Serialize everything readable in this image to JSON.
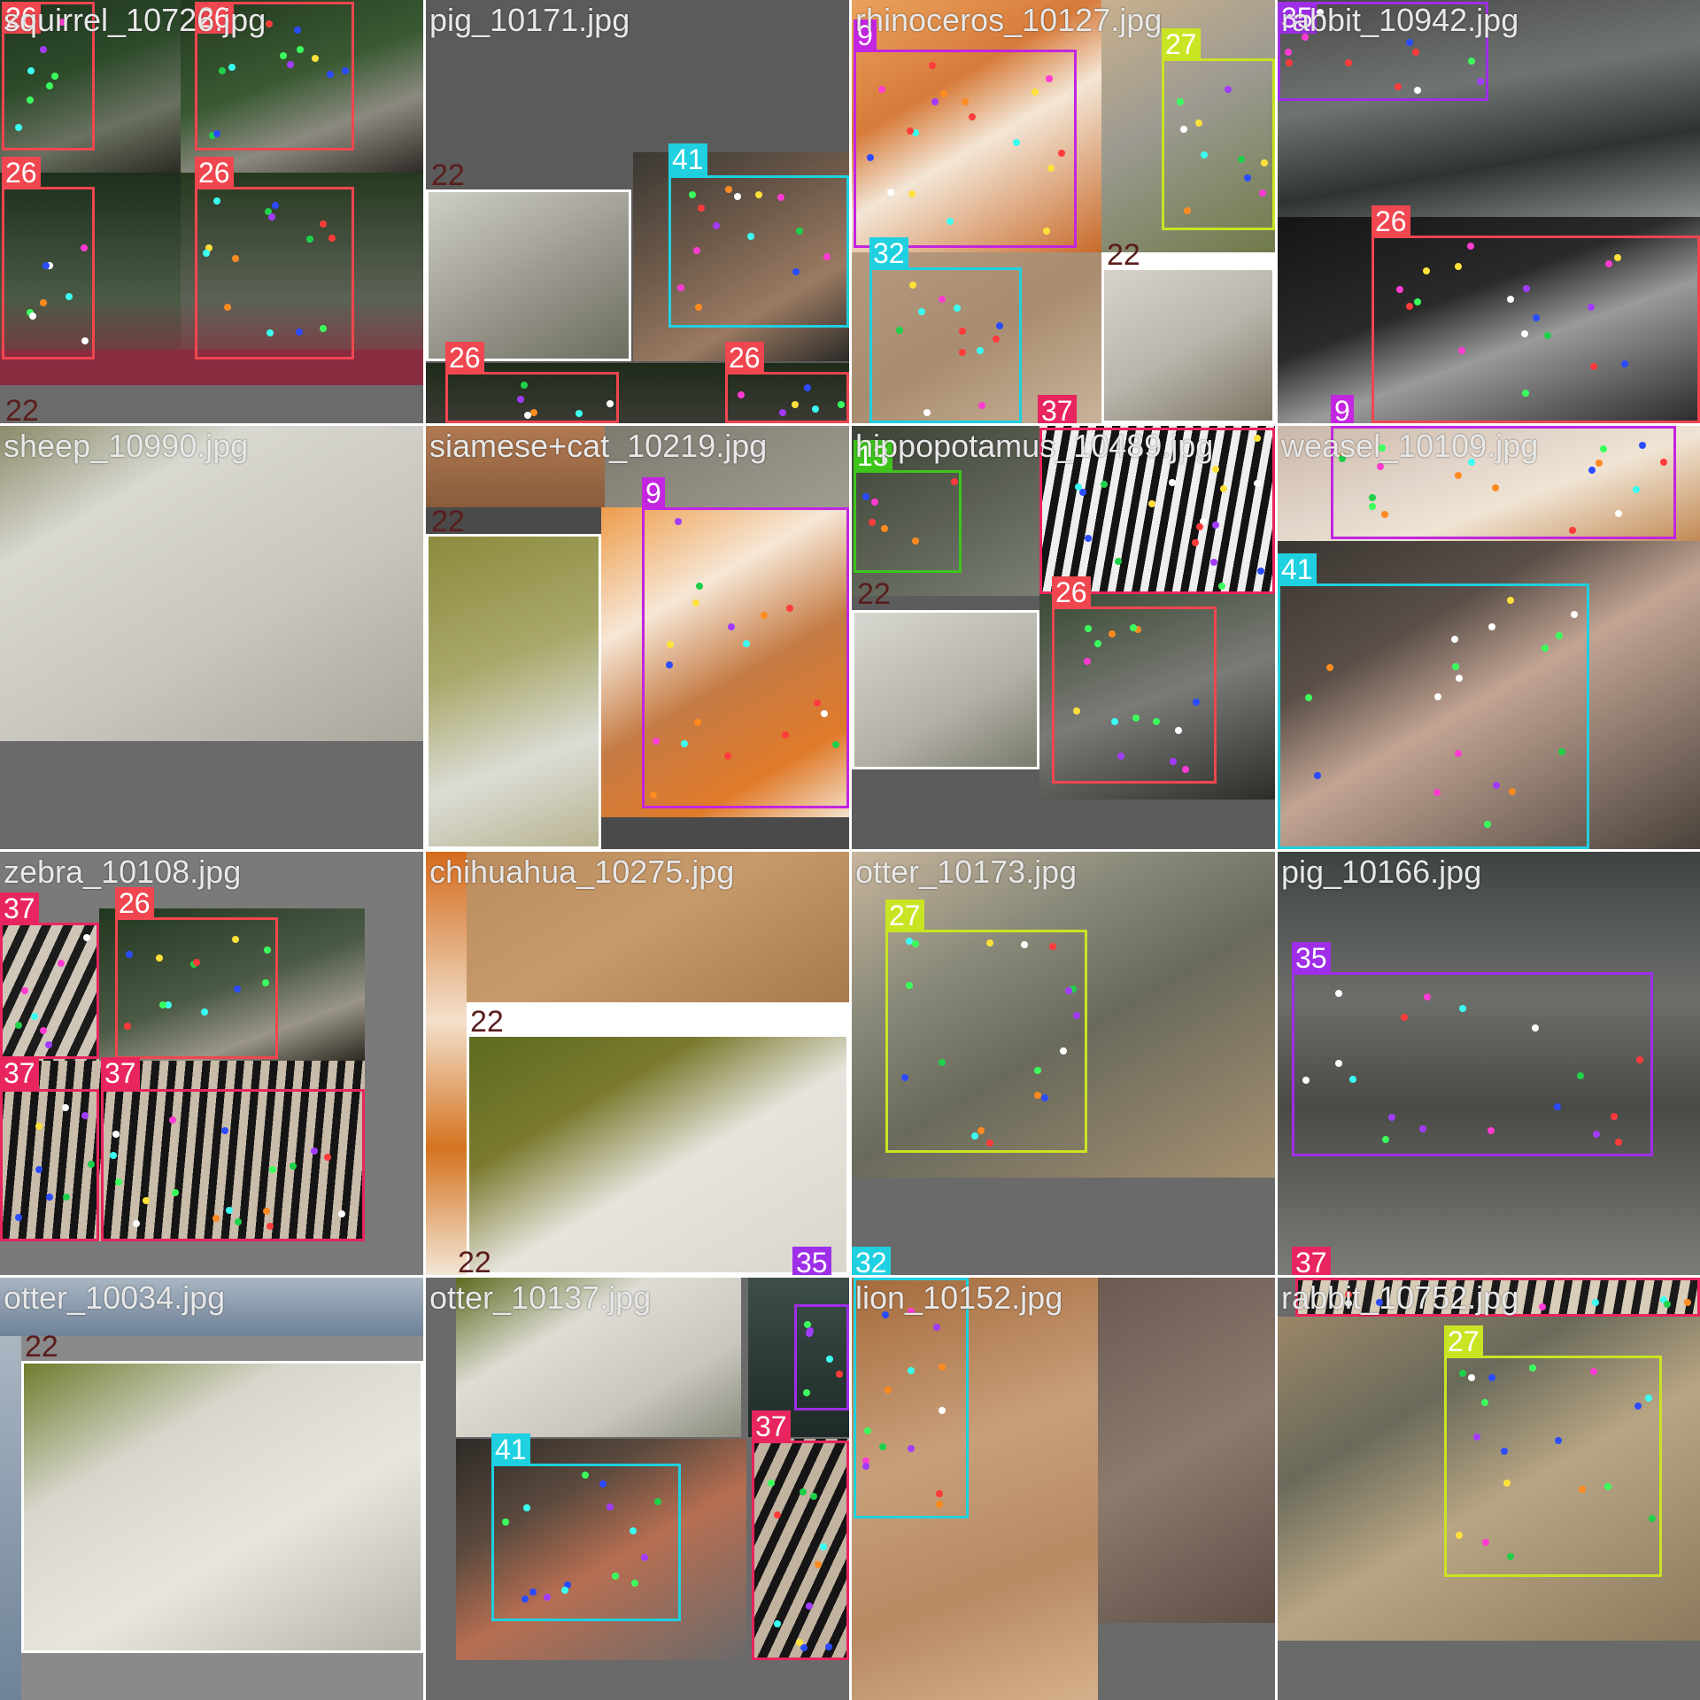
{
  "tiles": [
    {
      "id": "r0c0",
      "filename": "squirrel_10726.jpg",
      "subs": [
        {
          "bg": "linear-gradient(160deg,#1f3520 0%,#2d4a2a 40%,#6a7160 70%,#2a2a22 100%)"
        },
        {
          "bg": "linear-gradient(160deg,#23381f 0%,#3a5a33 45%,#8c8a80 70%,#2e2a26 100%)"
        },
        {
          "bg": "linear-gradient(180deg,#1c2f1c 0%,#4b5a45 60%,#8b2a3c 100%)"
        },
        {
          "bg": "linear-gradient(180deg,#26391f 0%,#5c6256 60%,#8e2b3e 100%)"
        },
        {
          "bg": "#8a2c40"
        }
      ],
      "labels": [
        {
          "text": "26",
          "color": "#f0464f"
        },
        {
          "text": "26",
          "color": "#f0464f"
        },
        {
          "text": "26",
          "color": "#f0464f"
        },
        {
          "text": "26",
          "color": "#f0464f"
        },
        {
          "text": "22",
          "color": "transparent"
        }
      ]
    },
    {
      "id": "r0c1",
      "filename": "pig_10171.jpg",
      "subs": [
        {
          "bg": "#5b5b5b"
        },
        {
          "bg": "linear-gradient(150deg,#cfcfc8 0%,#9e9c92 50%,#6b6b5e 100%)"
        },
        {
          "bg": "linear-gradient(150deg,#3a3833 0%,#6e5a4a 40%,#9a7a62 70%,#2b2a28 100%)"
        },
        {
          "bg": "linear-gradient(180deg,#1e2b1a 0%,#3b3b35 100%)"
        }
      ],
      "labels": [
        {
          "text": "22",
          "color": "transparent"
        },
        {
          "text": "41",
          "color": "#1fd0e0"
        },
        {
          "text": "26",
          "color": "#f0464f"
        },
        {
          "text": "26",
          "color": "#f0464f"
        }
      ]
    },
    {
      "id": "r0c2",
      "filename": "rhinoceros_10127.jpg",
      "subs": [
        {
          "bg": "linear-gradient(150deg,#e9a35c 0%,#d77b3a 35%,#f3e6d6 55%,#c86a2b 100%)"
        },
        {
          "bg": "linear-gradient(150deg,#c8b08e 0%,#9c9a90 45%,#6f7a4a 100%)"
        },
        {
          "bg": "linear-gradient(150deg,#b59a80 0%,#a88c70 50%,#c9b39a 100%)"
        },
        {
          "bg": "linear-gradient(150deg,#d7d4cc 0%,#b9b6ad 50%,#7b7260 100%)"
        }
      ],
      "labels": [
        {
          "text": "9",
          "color": "#c325e0"
        },
        {
          "text": "27",
          "color": "#c9e423"
        },
        {
          "text": "32",
          "color": "#1fd0e0"
        },
        {
          "text": "22",
          "color": "transparent"
        },
        {
          "text": "37",
          "color": "#e8255e"
        }
      ]
    },
    {
      "id": "r0c3",
      "filename": "rabbit_10942.jpg",
      "subs": [
        {
          "bg": "linear-gradient(170deg,#4a4a48 0%,#6f7472 40%,#2e3432 70%,#8a8e8a 100%)"
        },
        {
          "bg": "linear-gradient(160deg,#151515 0%,#2a2a2a 40%,#9a9a9a 60%,#2a2a2a 100%)"
        }
      ],
      "labels": [
        {
          "text": "35",
          "color": "#9e2ee8"
        },
        {
          "text": "26",
          "color": "#f0464f"
        },
        {
          "text": "9",
          "color": "#c325e0"
        }
      ]
    },
    {
      "id": "r1c0",
      "filename": "sheep_10990.jpg",
      "subs": [
        {
          "bg": "linear-gradient(150deg,#8a8b6a 0%,#d9d8d1 25%,#c8c6bd 60%,#a9a79c 100%)"
        },
        {
          "bg": "#6a6a6a"
        }
      ],
      "labels": []
    },
    {
      "id": "r1c1",
      "filename": "siamese+cat_10219.jpg",
      "subs": [
        {
          "bg": "linear-gradient(180deg,#b07a52 0%,#8a5c3c 100%)"
        },
        {
          "bg": "linear-gradient(150deg,#7e7a70 0%,#a09c92 100%)"
        },
        {
          "bg": "linear-gradient(160deg,#8b8a3c 0%,#a9a86a 40%,#dcdcd6 70%,#b7b28e 100%)"
        },
        {
          "bg": "linear-gradient(150deg,#ee9c4a 0%,#f6e7d6 30%,#c57b45 55%,#e07a2a 80%,#f3e2cd 100%)"
        },
        {
          "bg": "#4a4a4a"
        }
      ],
      "labels": [
        {
          "text": "22",
          "color": "transparent"
        },
        {
          "text": "9",
          "color": "#c325e0"
        }
      ]
    },
    {
      "id": "r1c2",
      "filename": "hippopotamus_10489.jpg",
      "subs": [
        {
          "bg": "linear-gradient(150deg,#3b4236 0%,#5a5f52 50%,#7a7e74 100%)"
        },
        {
          "bg": "repeating-linear-gradient(100deg,#eeeeee 0px,#eeeeee 9px,#141414 9px,#141414 18px)"
        },
        {
          "bg": "linear-gradient(150deg,#d9d8d2 0%,#b2b0a6 60%,#77776a 100%)"
        },
        {
          "bg": "linear-gradient(160deg,#3a4a33 0%,#7a7a76 50%,#2c2c28 100%)"
        },
        {
          "bg": "#5c5c5c"
        }
      ],
      "labels": [
        {
          "text": "13",
          "color": "#3dc51c"
        },
        {
          "text": "37",
          "color": "#e8255e"
        },
        {
          "text": "22",
          "color": "transparent"
        },
        {
          "text": "26",
          "color": "#f0464f"
        }
      ]
    },
    {
      "id": "r1c3",
      "filename": "weasel_10109.jpg",
      "subs": [
        {
          "bg": "linear-gradient(160deg,#c9b7a8 0%,#e3d6ca 40%,#f0e4d4 60%,#c28a55 100%)"
        },
        {
          "bg": "linear-gradient(150deg,#3a3632 0%,#5a4f48 30%,#c2a493 50%,#4a433c 100%)"
        }
      ],
      "labels": [
        {
          "text": "41",
          "color": "#1fd0e0"
        }
      ]
    },
    {
      "id": "r2c0",
      "filename": "zebra_10108.jpg",
      "subs": [
        {
          "bg": "repeating-linear-gradient(115deg,#1c1c1c 0px,#1c1c1c 10px,#cfc6b8 10px,#cfc6b8 22px)"
        },
        {
          "bg": "linear-gradient(160deg,#22371f 0%,#4b5a45 50%,#9a9588 75%,#2b2820 100%)"
        },
        {
          "bg": "repeating-linear-gradient(95deg,#151515 0px,#151515 9px,#c9bcaa 9px,#c9bcaa 19px)"
        },
        {
          "bg": "#7a7a7a"
        }
      ],
      "labels": [
        {
          "text": "37",
          "color": "#e8255e"
        },
        {
          "text": "26",
          "color": "#f0464f"
        },
        {
          "text": "37",
          "color": "#e8255e"
        },
        {
          "text": "37",
          "color": "#e8255e"
        }
      ]
    },
    {
      "id": "r2c1",
      "filename": "chihuahua_10275.jpg",
      "subs": [
        {
          "bg": "linear-gradient(150deg,#b88a5c 0%,#c79a6b 50%,#a77a4e 100%)"
        },
        {
          "bg": "linear-gradient(180deg,#d56b1c 0%,#f2e0cc 40%,#d5731f 70%,#f3e6d6 100%)"
        },
        {
          "bg": "linear-gradient(150deg,#5c6a1f 0%,#7a7a2f 30%,#e6e4dc 55%,#d8d6cc 100%)"
        }
      ],
      "labels": [
        {
          "text": "22",
          "color": "transparent"
        },
        {
          "text": "22",
          "color": "transparent"
        },
        {
          "text": "35",
          "color": "#9e2ee8"
        }
      ]
    },
    {
      "id": "r2c2",
      "filename": "otter_10173.jpg",
      "subs": [
        {
          "bg": "linear-gradient(150deg,#c8b59c 0%,#8a8a7a 30%,#6a6a5c 55%,#a59070 100%)"
        },
        {
          "bg": "#6a6a6a"
        }
      ],
      "labels": [
        {
          "text": "27",
          "color": "#c9e423"
        },
        {
          "text": "32",
          "color": "#1fd0e0"
        }
      ]
    },
    {
      "id": "r2c3",
      "filename": "pig_10166.jpg",
      "subs": [
        {
          "bg": "linear-gradient(180deg,#3e4442 0%,#6c6e6a 35%,#4a4a46 60%,#7a7c78 100%)"
        }
      ],
      "labels": [
        {
          "text": "35",
          "color": "#9e2ee8"
        },
        {
          "text": "37",
          "color": "#e8255e"
        }
      ]
    },
    {
      "id": "r3c0",
      "filename": "otter_10034.jpg",
      "subs": [
        {
          "bg": "linear-gradient(180deg,#a9b6c2 0%,#6f8298 100%)"
        },
        {
          "bg": "linear-gradient(150deg,#6b7a2a 0%,#d8d6cc 30%,#e7e5de 60%,#b5b3a8 100%)"
        },
        {
          "bg": "#8a8a8a"
        }
      ],
      "labels": [
        {
          "text": "22",
          "color": "transparent"
        }
      ]
    },
    {
      "id": "r3c1",
      "filename": "otter_10137.jpg",
      "subs": [
        {
          "bg": "linear-gradient(150deg,#5d6a20 0%,#dedcd4 35%,#c9c7bd 70%,#8a8a7e 100%)"
        },
        {
          "bg": "linear-gradient(150deg,#2d2a26 0%,#5b4a3e 30%,#b76e52 55%,#6a6a6a 100%)"
        },
        {
          "bg": "linear-gradient(180deg,#3d4e48 0%,#1e2a28 100%)"
        },
        {
          "bg": "repeating-linear-gradient(115deg,#151515 0px,#151515 10px,#c2b3a0 10px,#c2b3a0 22px)"
        },
        {
          "bg": "#6a6a6a"
        }
      ],
      "labels": [
        {
          "text": "41",
          "color": "#1fd0e0"
        },
        {
          "text": "37",
          "color": "#e8255e"
        }
      ]
    },
    {
      "id": "r3c2",
      "filename": "lion_10152.jpg",
      "subs": [
        {
          "bg": "linear-gradient(160deg,#a56a3a 0%,#c89f7a 40%,#b78a62 70%,#d6b08c 100%)"
        },
        {
          "bg": "linear-gradient(150deg,#6a5a50 0%,#8c7a6e 50%,#5e4e44 100%)"
        }
      ],
      "labels": []
    },
    {
      "id": "r3c3",
      "filename": "rabbit_10752.jpg",
      "subs": [
        {
          "bg": "repeating-linear-gradient(100deg,#1a1a1a 0px,#1a1a1a 9px,#d7cdb8 9px,#d7cdb8 20px)"
        },
        {
          "bg": "linear-gradient(150deg,#9a8668 0%,#6a6a5a 30%,#b8a584 55%,#8c7a5e 100%)"
        },
        {
          "bg": "#6a6a6a"
        }
      ],
      "labels": [
        {
          "text": "27",
          "color": "#c9e423"
        }
      ]
    }
  ]
}
